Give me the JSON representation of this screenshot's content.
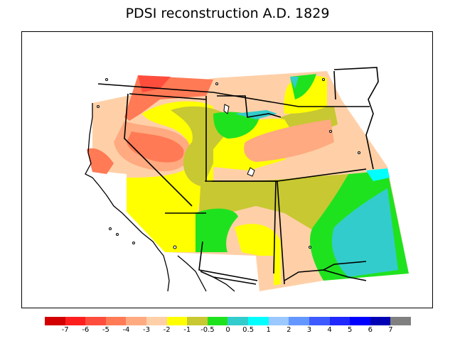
{
  "title": "PDSI reconstruction A.D. 1829",
  "legend": {
    "colors": [
      "#d20000",
      "#ff1e1e",
      "#ff4d3d",
      "#ff7a55",
      "#ffaa80",
      "#ffd0a8",
      "#ffff00",
      "#c8c832",
      "#1fe21f",
      "#33cccc",
      "#00ffff",
      "#9ac8ff",
      "#6496ff",
      "#3c5aff",
      "#1e28ff",
      "#0000ff",
      "#0000b4",
      "#808080"
    ],
    "labels": [
      "-7",
      "-6",
      "-5",
      "-4",
      "-3",
      "-2",
      "-1",
      "-0.5",
      "0",
      "0.5",
      "1",
      "2",
      "3",
      "4",
      "5",
      "6",
      "7"
    ]
  }
}
